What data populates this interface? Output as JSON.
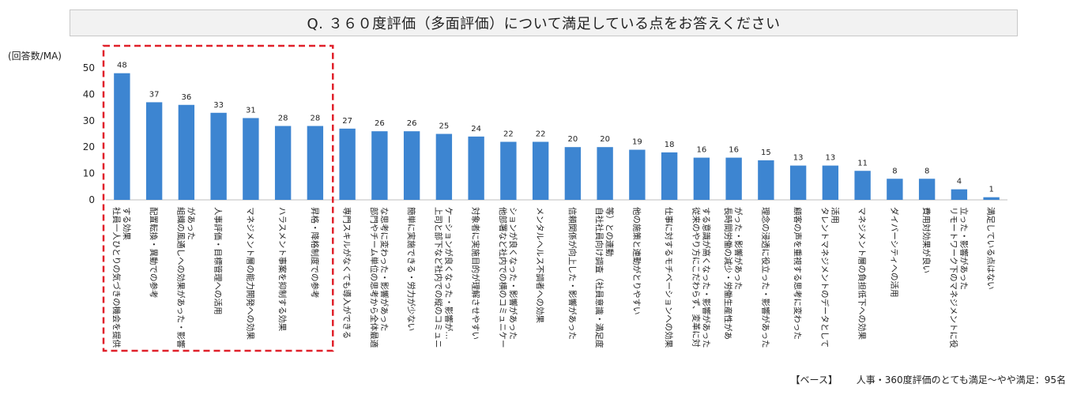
{
  "chart_data": {
    "type": "bar",
    "title": "Q. ３６０度評価（多面評価）について満足している点をお答えください",
    "ylabel": "(回答数/MA)",
    "ylim": [
      0,
      50
    ],
    "yticks": [
      0,
      10,
      20,
      30,
      40,
      50
    ],
    "bar_color": "#3d85d1",
    "highlight_color": "#e0202a",
    "highlight_first_n": 7,
    "categories": [
      "社員一人ひとりの気づきの機会を提供する効果",
      "配置転換・異動での参考",
      "組織の風通しへの効果があった・影響があった",
      "人事評価・目標管理への活用",
      "マネジメント層の能力開発への効果",
      "ハラスメント事案を抑制する効果",
      "昇格・降格制度での参考",
      "専門スキルがなくても導入ができる",
      "部門やチーム単位の思考から全体最適な思考に変わった・影響があった",
      "簡単に実施できる・労力が少ない",
      "上司と部下など社内での縦のコミュニケーションが良くなった・影響が…",
      "対象者に実施目的が理解させやすい",
      "他部署など社内での横のコミュニケーションが良くなった・影響があった",
      "メンタルヘルス不調者への効果",
      "信頼関係が向上した・影響があった",
      "自社社員向け調査（社員意識・満足度等）との連動",
      "他の施策と連動がとりやすい",
      "仕事に対するモチベーションへの効果",
      "従来のやり方にこだわらず、変革に対する意識が高くなった・影響があった",
      "長時間労働の減少・労働生産性があがった・影響があった",
      "理念の浸透に役立った・影響があった",
      "顧客の声を重視する思考に変わった",
      "タレントマネジメントのデータとして活用",
      "マネジメント層の負担低下への効果",
      "ダイバーシティへの活用",
      "費用対効果が良い",
      "リモートワーク下のマネジメントに役立った・影響があった",
      "満足している点はない"
    ],
    "label_lines": [
      [
        "社員一人ひとりの気づきの機会を提供",
        "する効果"
      ],
      [
        "配置転換・異動での参考"
      ],
      [
        "組織の風通しへの効果があった・影響",
        "があった"
      ],
      [
        "人事評価・目標管理への活用"
      ],
      [
        "マネジメント層の能力開発への効果"
      ],
      [
        "ハラスメント事案を抑制する効果"
      ],
      [
        "昇格・降格制度での参考"
      ],
      [
        "専門スキルがなくても導入ができる"
      ],
      [
        "部門やチーム単位の思考から全体最適",
        "な思考に変わった・影響があった"
      ],
      [
        "簡単に実施できる・労力が少ない"
      ],
      [
        "上司と部下など社内での縦のコミュニ",
        "ケーションが良くなった・影響が…"
      ],
      [
        "対象者に実施目的が理解させやすい"
      ],
      [
        "他部署など社内での横のコミュニケー",
        "ションが良くなった・影響があった"
      ],
      [
        "メンタルヘルス不調者への効果"
      ],
      [
        "信頼関係が向上した・影響があった"
      ],
      [
        "自社社員向け調査（社員意識・満足度",
        "等）との連動"
      ],
      [
        "他の施策と連動がとりやすい"
      ],
      [
        "仕事に対するモチベーションへの効果"
      ],
      [
        "従来のやり方にこだわらず、変革に対",
        "する意識が高くなった・影響があった"
      ],
      [
        "長時間労働の減少・労働生産性があ",
        "がった・影響があった"
      ],
      [
        "理念の浸透に役立った・影響があった"
      ],
      [
        "顧客の声を重視する思考に変わった"
      ],
      [
        "タレントマネジメントのデータとして",
        "活用"
      ],
      [
        "マネジメント層の負担低下への効果"
      ],
      [
        "ダイバーシティへの活用"
      ],
      [
        "費用対効果が良い"
      ],
      [
        "リモートワーク下のマネジメントに役",
        "立った・影響があった"
      ],
      [
        "満足している点はない"
      ]
    ],
    "values": [
      48,
      37,
      36,
      33,
      31,
      28,
      28,
      27,
      26,
      26,
      25,
      24,
      22,
      22,
      20,
      20,
      19,
      18,
      16,
      16,
      15,
      13,
      13,
      11,
      8,
      8,
      4,
      1
    ]
  },
  "footer": {
    "base_label": "【ベース】",
    "base_text": "人事・360度評価のとても満足～やや満足：95名"
  }
}
